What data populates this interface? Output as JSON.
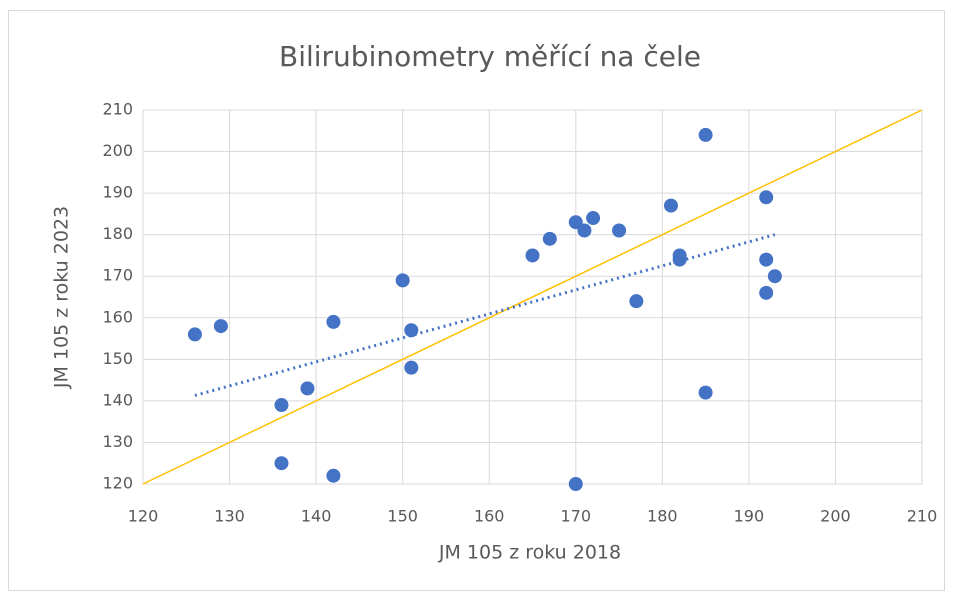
{
  "chart_data": {
    "type": "scatter",
    "title": "Bilirubinometry měřící na čele",
    "x_label": "JM 105 z roku 2018",
    "y_label": "JM 105 z roku 2023",
    "series": [
      {
        "color": "#4472c4",
        "x": [
          126,
          129,
          136,
          136,
          139,
          142,
          142,
          150,
          151,
          151,
          165,
          167,
          170,
          170,
          171,
          172,
          175,
          177,
          181,
          182,
          182,
          185,
          185,
          192,
          192,
          192,
          193
        ],
        "values": [
          156,
          158,
          139,
          125,
          143,
          159,
          122,
          169,
          157,
          148,
          175,
          179,
          183,
          120,
          181,
          184,
          181,
          164,
          187,
          175,
          174,
          204,
          142,
          189,
          174,
          166,
          170
        ]
      }
    ],
    "trendline": {
      "color": "#4472c4",
      "x": [
        126,
        193
      ],
      "values": [
        141.3,
        180
      ]
    },
    "reference_line": {
      "color": "#ffc000",
      "x": [
        120,
        210
      ],
      "values": [
        120,
        210
      ]
    },
    "xlim": [
      120,
      210
    ],
    "xticks": [
      120,
      130,
      140,
      150,
      160,
      170,
      180,
      190,
      200,
      210
    ],
    "ylim": [
      120,
      210
    ],
    "yticks": [
      120,
      130,
      140,
      150,
      160,
      170,
      180,
      190,
      200,
      210
    ],
    "grid": true
  }
}
